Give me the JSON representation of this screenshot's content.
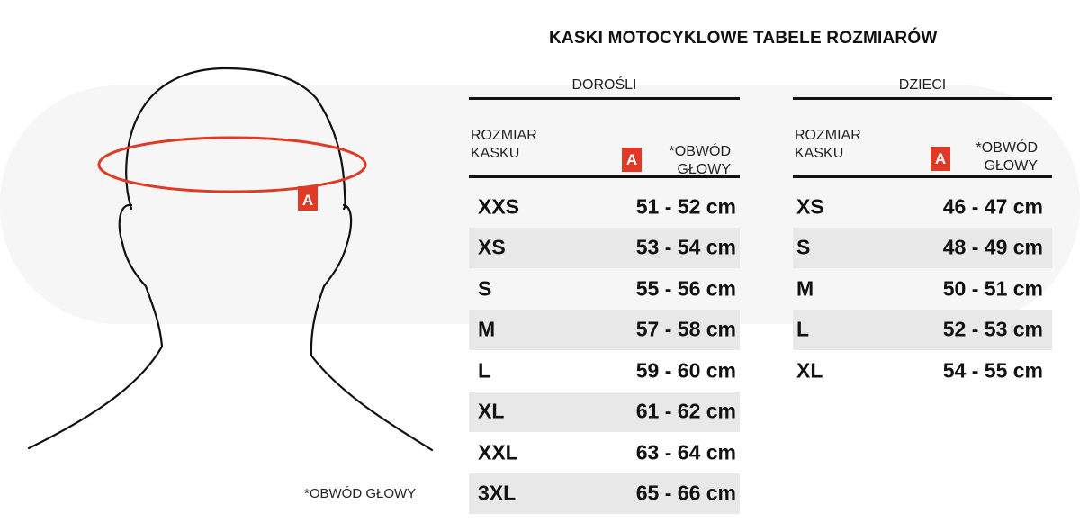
{
  "title": "KASKI MOTOCYKLOWE TABELE ROZMIARÓW",
  "footnote": "*OBWÓD GŁOWY",
  "badge_color": "#e03a26",
  "head_badge": "A",
  "adults": {
    "title": "DOROŚLI",
    "size_label_line1": "ROZMIAR",
    "size_label_line2": "KASKU",
    "badge": "A",
    "circ_label_line1": "*OBWÓD",
    "circ_label_line2": "GŁOWY",
    "rows": [
      {
        "size": "XXS",
        "circ": "51 - 52 cm"
      },
      {
        "size": "XS",
        "circ": "53 - 54 cm"
      },
      {
        "size": "S",
        "circ": "55 - 56 cm"
      },
      {
        "size": "M",
        "circ": "57 - 58 cm"
      },
      {
        "size": "L",
        "circ": "59 - 60 cm"
      },
      {
        "size": "XL",
        "circ": "61 - 62 cm"
      },
      {
        "size": "XXL",
        "circ": "63 - 64 cm"
      },
      {
        "size": "3XL",
        "circ": "65 - 66 cm"
      }
    ]
  },
  "kids": {
    "title": "DZIECI",
    "size_label_line1": "ROZMIAR",
    "size_label_line2": "KASKU",
    "badge": "A",
    "circ_label_line1": "*OBWÓD",
    "circ_label_line2": "GŁOWY",
    "rows": [
      {
        "size": "XS",
        "circ": "46 - 47 cm"
      },
      {
        "size": "S",
        "circ": "48 - 49 cm"
      },
      {
        "size": "M",
        "circ": "50 - 51 cm"
      },
      {
        "size": "L",
        "circ": "52 - 53 cm"
      },
      {
        "size": "XL",
        "circ": "54 - 55 cm"
      }
    ]
  }
}
